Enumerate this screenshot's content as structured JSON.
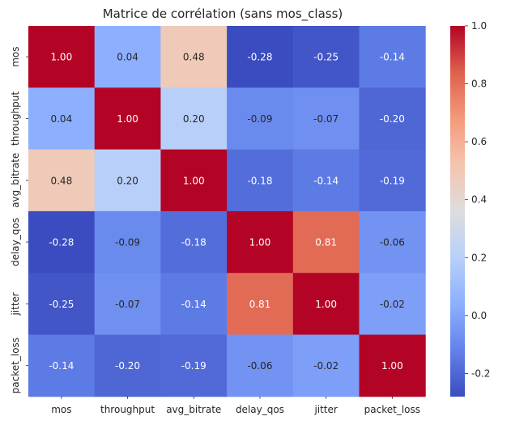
{
  "chart_data": {
    "type": "heatmap",
    "title": "Matrice de corrélation (sans mos_class)",
    "xlabel": "",
    "ylabel": "",
    "x_categories": [
      "mos",
      "throughput",
      "avg_bitrate",
      "delay_qos",
      "jitter",
      "packet_loss"
    ],
    "y_categories": [
      "mos",
      "throughput",
      "avg_bitrate",
      "delay_qos",
      "jitter",
      "packet_loss"
    ],
    "values": [
      [
        1.0,
        0.04,
        0.48,
        -0.28,
        -0.25,
        -0.14
      ],
      [
        0.04,
        1.0,
        0.2,
        -0.09,
        -0.07,
        -0.2
      ],
      [
        0.48,
        0.2,
        1.0,
        -0.18,
        -0.14,
        -0.19
      ],
      [
        -0.28,
        -0.09,
        -0.18,
        1.0,
        0.81,
        -0.06
      ],
      [
        -0.25,
        -0.07,
        -0.14,
        0.81,
        1.0,
        -0.02
      ],
      [
        -0.14,
        -0.2,
        -0.19,
        -0.06,
        -0.02,
        1.0
      ]
    ],
    "value_format": "2 decimals",
    "colormap": "coolwarm",
    "colorbar": {
      "vmin": -0.28,
      "vmax": 1.0,
      "ticks": [
        "-0.2",
        "0.0",
        "0.2",
        "0.4",
        "0.6",
        "0.8",
        "1.0"
      ]
    },
    "grid": false
  }
}
